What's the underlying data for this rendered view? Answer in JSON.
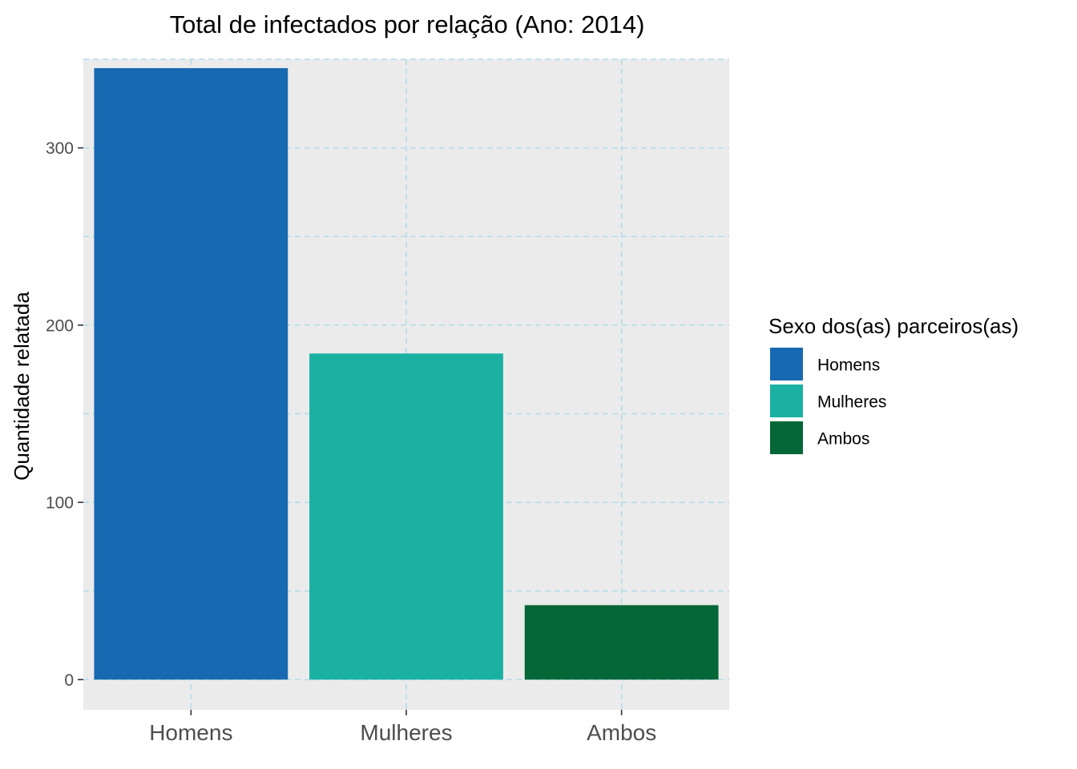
{
  "chart_data": {
    "type": "bar",
    "title": "Total de infectados por relação (Ano: 2014)",
    "xlabel": "",
    "ylabel": "Quantidade relatada",
    "categories": [
      "Homens",
      "Mulheres",
      "Ambos"
    ],
    "values": [
      345,
      184,
      42
    ],
    "colors": [
      "#1769b2",
      "#1ab1a3",
      "#056637"
    ],
    "ylim": [
      -17,
      350
    ],
    "yticks": [
      0,
      100,
      200,
      300
    ],
    "ytick_labels": [
      "0",
      "100",
      "200",
      "300"
    ],
    "grid": true,
    "grid_color": "#b3dcea",
    "panel_background": "#ebebeb",
    "legend": {
      "title": "Sexo dos(as) parceiros(as)",
      "placement": "right",
      "entries": [
        "Homens",
        "Mulheres",
        "Ambos"
      ]
    }
  }
}
